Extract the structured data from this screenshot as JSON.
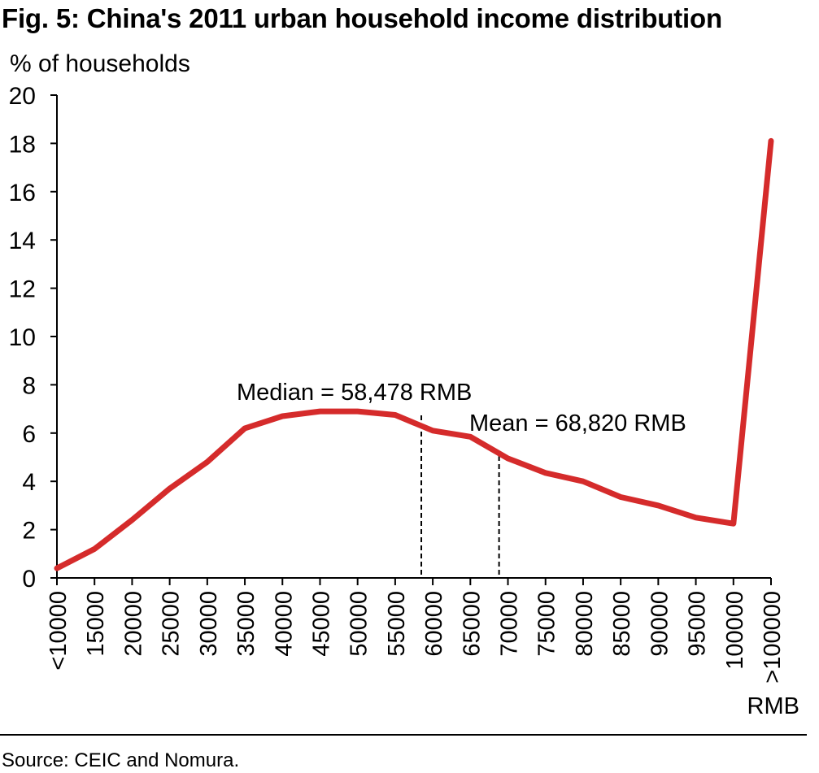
{
  "title": "Fig. 5: China's 2011 urban household income distribution",
  "source": "Source: CEIC and Nomura.",
  "colors": {
    "line": "#d52b2b",
    "axis": "#000000",
    "marker": "#000000"
  },
  "chart_data": {
    "type": "line",
    "ylabel": "% of households",
    "xlabel": "RMB",
    "ylim": [
      0,
      20
    ],
    "yticks": [
      0,
      2,
      4,
      6,
      8,
      10,
      12,
      14,
      16,
      18,
      20
    ],
    "grid": false,
    "legend": "none",
    "categories": [
      "<10000",
      "15000",
      "20000",
      "25000",
      "30000",
      "35000",
      "40000",
      "45000",
      "50000",
      "55000",
      "60000",
      "65000",
      "70000",
      "75000",
      "80000",
      "85000",
      "90000",
      "95000",
      "100000",
      ">100000"
    ],
    "series": [
      {
        "values": [
          0.4,
          1.2,
          2.4,
          3.7,
          4.8,
          6.2,
          6.7,
          6.9,
          6.9,
          6.75,
          6.1,
          5.85,
          4.95,
          4.35,
          4.0,
          3.35,
          3.0,
          2.5,
          2.25,
          18.1
        ]
      }
    ],
    "annotations": [
      {
        "text": "Median = 58,478 RMB",
        "value": 58478,
        "y_top": 6.8
      },
      {
        "text": "Mean = 68,820 RMB",
        "value": 68820,
        "y_top": 5.2
      }
    ]
  }
}
